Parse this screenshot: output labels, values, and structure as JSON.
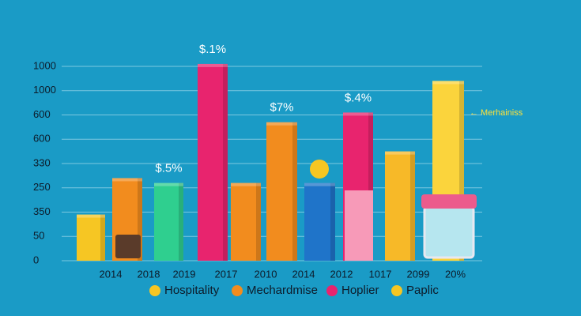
{
  "chart_data": {
    "type": "bar",
    "categories": [
      "2014",
      "2018",
      "2019",
      "2017",
      "2010",
      "2014",
      "2012",
      "1017",
      "2099",
      "20%"
    ],
    "values": [
      1.9,
      3.4,
      3.2,
      8.1,
      3.2,
      5.7,
      3.2,
      6.1,
      4.5,
      7.4
    ],
    "colors": [
      "#f6c623",
      "#f28c1e",
      "#2fcf8f",
      "#e8246e",
      "#f28c1e",
      "#f28c1e",
      "#1f74c9",
      "#e8246e",
      "#f7b928",
      "#fbd43c"
    ],
    "bar_labels": [
      null,
      null,
      "$.5%",
      "$.1%",
      null,
      "$7%",
      null,
      "$.4%",
      null,
      null
    ],
    "ylim": [
      0,
      8
    ],
    "yticks": [
      {
        "value": 0,
        "label": "0"
      },
      {
        "value": 1,
        "label": "50"
      },
      {
        "value": 2,
        "label": "350"
      },
      {
        "value": 3,
        "label": "250"
      },
      {
        "value": 4,
        "label": "330"
      },
      {
        "value": 5,
        "label": "600"
      },
      {
        "value": 6,
        "label": "600"
      },
      {
        "value": 7,
        "label": "1000"
      },
      {
        "value": 8,
        "label": "1000"
      }
    ],
    "grid": true,
    "annotation": "← Merhainiss",
    "legend": [
      {
        "name": "Hospitality",
        "color": "#f6c623"
      },
      {
        "name": "Mechardmise",
        "color": "#f28c1e"
      },
      {
        "name": "Hoplier",
        "color": "#e8246e"
      },
      {
        "name": "Paplic",
        "color": "#f6c623"
      }
    ]
  }
}
